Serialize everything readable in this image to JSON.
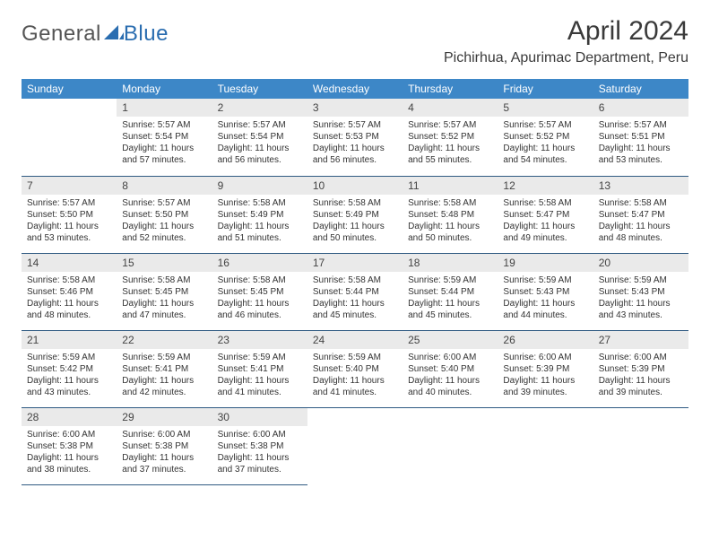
{
  "brand": {
    "general": "General",
    "blue": "Blue"
  },
  "title": "April 2024",
  "location": "Pichirhua, Apurimac Department, Peru",
  "colors": {
    "header_bg": "#3d87c7",
    "header_text": "#ffffff",
    "daynum_bg": "#eaeaea",
    "row_border": "#2f5a82",
    "logo_blue": "#2a6db0"
  },
  "weekdays": [
    "Sunday",
    "Monday",
    "Tuesday",
    "Wednesday",
    "Thursday",
    "Friday",
    "Saturday"
  ],
  "weeks": [
    [
      {
        "blank": true
      },
      {
        "n": "1",
        "sr": "5:57 AM",
        "ss": "5:54 PM",
        "dl": "11 hours and 57 minutes."
      },
      {
        "n": "2",
        "sr": "5:57 AM",
        "ss": "5:54 PM",
        "dl": "11 hours and 56 minutes."
      },
      {
        "n": "3",
        "sr": "5:57 AM",
        "ss": "5:53 PM",
        "dl": "11 hours and 56 minutes."
      },
      {
        "n": "4",
        "sr": "5:57 AM",
        "ss": "5:52 PM",
        "dl": "11 hours and 55 minutes."
      },
      {
        "n": "5",
        "sr": "5:57 AM",
        "ss": "5:52 PM",
        "dl": "11 hours and 54 minutes."
      },
      {
        "n": "6",
        "sr": "5:57 AM",
        "ss": "5:51 PM",
        "dl": "11 hours and 53 minutes."
      }
    ],
    [
      {
        "n": "7",
        "sr": "5:57 AM",
        "ss": "5:50 PM",
        "dl": "11 hours and 53 minutes."
      },
      {
        "n": "8",
        "sr": "5:57 AM",
        "ss": "5:50 PM",
        "dl": "11 hours and 52 minutes."
      },
      {
        "n": "9",
        "sr": "5:58 AM",
        "ss": "5:49 PM",
        "dl": "11 hours and 51 minutes."
      },
      {
        "n": "10",
        "sr": "5:58 AM",
        "ss": "5:49 PM",
        "dl": "11 hours and 50 minutes."
      },
      {
        "n": "11",
        "sr": "5:58 AM",
        "ss": "5:48 PM",
        "dl": "11 hours and 50 minutes."
      },
      {
        "n": "12",
        "sr": "5:58 AM",
        "ss": "5:47 PM",
        "dl": "11 hours and 49 minutes."
      },
      {
        "n": "13",
        "sr": "5:58 AM",
        "ss": "5:47 PM",
        "dl": "11 hours and 48 minutes."
      }
    ],
    [
      {
        "n": "14",
        "sr": "5:58 AM",
        "ss": "5:46 PM",
        "dl": "11 hours and 48 minutes."
      },
      {
        "n": "15",
        "sr": "5:58 AM",
        "ss": "5:45 PM",
        "dl": "11 hours and 47 minutes."
      },
      {
        "n": "16",
        "sr": "5:58 AM",
        "ss": "5:45 PM",
        "dl": "11 hours and 46 minutes."
      },
      {
        "n": "17",
        "sr": "5:58 AM",
        "ss": "5:44 PM",
        "dl": "11 hours and 45 minutes."
      },
      {
        "n": "18",
        "sr": "5:59 AM",
        "ss": "5:44 PM",
        "dl": "11 hours and 45 minutes."
      },
      {
        "n": "19",
        "sr": "5:59 AM",
        "ss": "5:43 PM",
        "dl": "11 hours and 44 minutes."
      },
      {
        "n": "20",
        "sr": "5:59 AM",
        "ss": "5:43 PM",
        "dl": "11 hours and 43 minutes."
      }
    ],
    [
      {
        "n": "21",
        "sr": "5:59 AM",
        "ss": "5:42 PM",
        "dl": "11 hours and 43 minutes."
      },
      {
        "n": "22",
        "sr": "5:59 AM",
        "ss": "5:41 PM",
        "dl": "11 hours and 42 minutes."
      },
      {
        "n": "23",
        "sr": "5:59 AM",
        "ss": "5:41 PM",
        "dl": "11 hours and 41 minutes."
      },
      {
        "n": "24",
        "sr": "5:59 AM",
        "ss": "5:40 PM",
        "dl": "11 hours and 41 minutes."
      },
      {
        "n": "25",
        "sr": "6:00 AM",
        "ss": "5:40 PM",
        "dl": "11 hours and 40 minutes."
      },
      {
        "n": "26",
        "sr": "6:00 AM",
        "ss": "5:39 PM",
        "dl": "11 hours and 39 minutes."
      },
      {
        "n": "27",
        "sr": "6:00 AM",
        "ss": "5:39 PM",
        "dl": "11 hours and 39 minutes."
      }
    ],
    [
      {
        "n": "28",
        "sr": "6:00 AM",
        "ss": "5:38 PM",
        "dl": "11 hours and 38 minutes."
      },
      {
        "n": "29",
        "sr": "6:00 AM",
        "ss": "5:38 PM",
        "dl": "11 hours and 37 minutes."
      },
      {
        "n": "30",
        "sr": "6:00 AM",
        "ss": "5:38 PM",
        "dl": "11 hours and 37 minutes."
      },
      {
        "blank": true
      },
      {
        "blank": true
      },
      {
        "blank": true
      },
      {
        "blank": true
      }
    ]
  ],
  "labels": {
    "sunrise": "Sunrise:",
    "sunset": "Sunset:",
    "daylight": "Daylight:"
  }
}
